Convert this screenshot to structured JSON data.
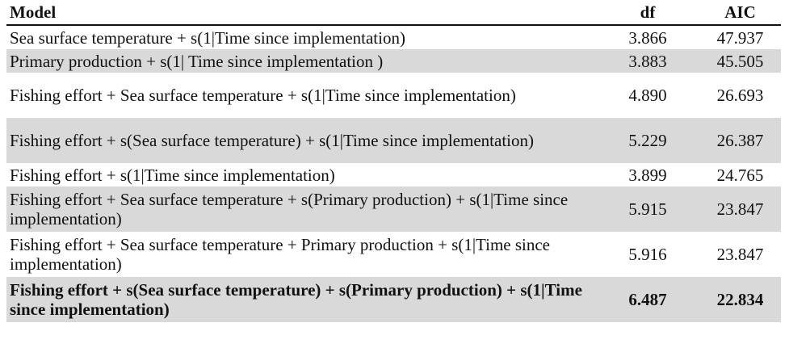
{
  "table": {
    "headers": {
      "model": "Model",
      "df": "df",
      "aic": "AIC"
    },
    "rows": [
      {
        "model": "Sea surface temperature + s(1|Time since implementation)",
        "df": "3.866",
        "aic": "47.937"
      },
      {
        "model": "Primary production + s(1| Time since implementation )",
        "df": "3.883",
        "aic": "45.505"
      },
      {
        "model": "Fishing effort + Sea surface temperature + s(1|Time since implementation)",
        "df": "4.890",
        "aic": "26.693"
      },
      {
        "model": "Fishing effort + s(Sea surface temperature) + s(1|Time since implementation)",
        "df": "5.229",
        "aic": "26.387"
      },
      {
        "model": "Fishing effort + s(1|Time since implementation)",
        "df": "3.899",
        "aic": "24.765"
      },
      {
        "model": "Fishing effort + Sea surface temperature + s(Primary production) + s(1|Time since implementation)",
        "df": "5.915",
        "aic": "23.847"
      },
      {
        "model": "Fishing effort + Sea surface temperature + Primary production + s(1|Time since implementation)",
        "df": "5.916",
        "aic": "23.847"
      },
      {
        "model": "Fishing effort + s(Sea surface temperature) + s(Primary production) + s(1|Time since implementation)",
        "df": "6.487",
        "aic": "22.834"
      }
    ]
  }
}
